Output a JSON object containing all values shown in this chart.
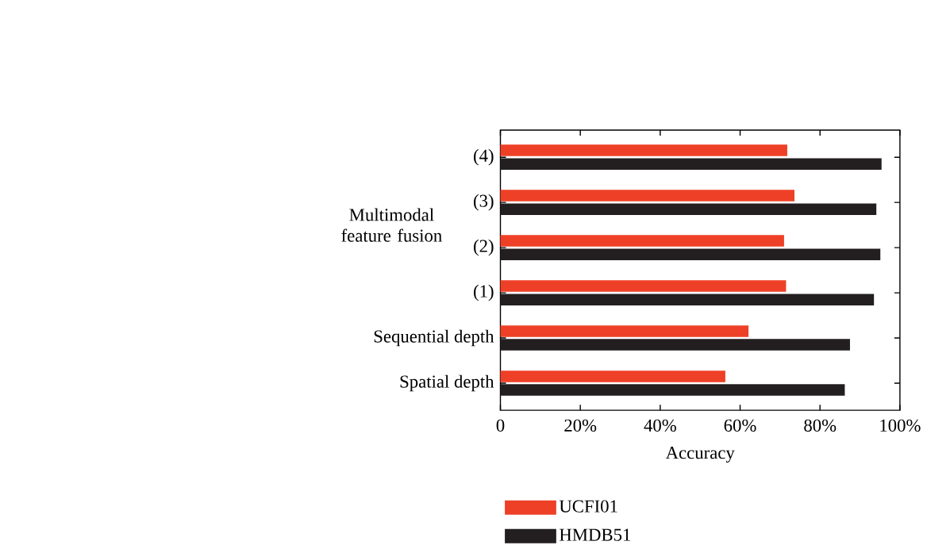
{
  "chart_data": {
    "type": "bar",
    "orientation": "horizontal",
    "xlabel": "Accuracy",
    "categories": [
      "(4)",
      "(3)",
      "(2)",
      "(1)",
      "Sequential depth",
      "Spatial depth"
    ],
    "series": [
      {
        "name": "UCFI01",
        "color": "#ee4027",
        "values": [
          71.8,
          73.6,
          71.0,
          71.5,
          62.1,
          56.3
        ]
      },
      {
        "name": "HMDB51",
        "color": "#231f20",
        "values": [
          95.4,
          94.1,
          95.1,
          93.5,
          87.5,
          86.2
        ]
      }
    ],
    "xlim": [
      0,
      100
    ],
    "xticks": [
      0,
      {
        "value": 20,
        "label": "20%"
      },
      {
        "value": 40,
        "label": "40%"
      },
      {
        "value": 60,
        "label": "60%"
      },
      {
        "value": 80,
        "label": "80%"
      },
      {
        "value": 100,
        "label": "100%"
      }
    ],
    "annotations": [
      "Multimodal feature fusion"
    ],
    "legend": "bottom"
  }
}
